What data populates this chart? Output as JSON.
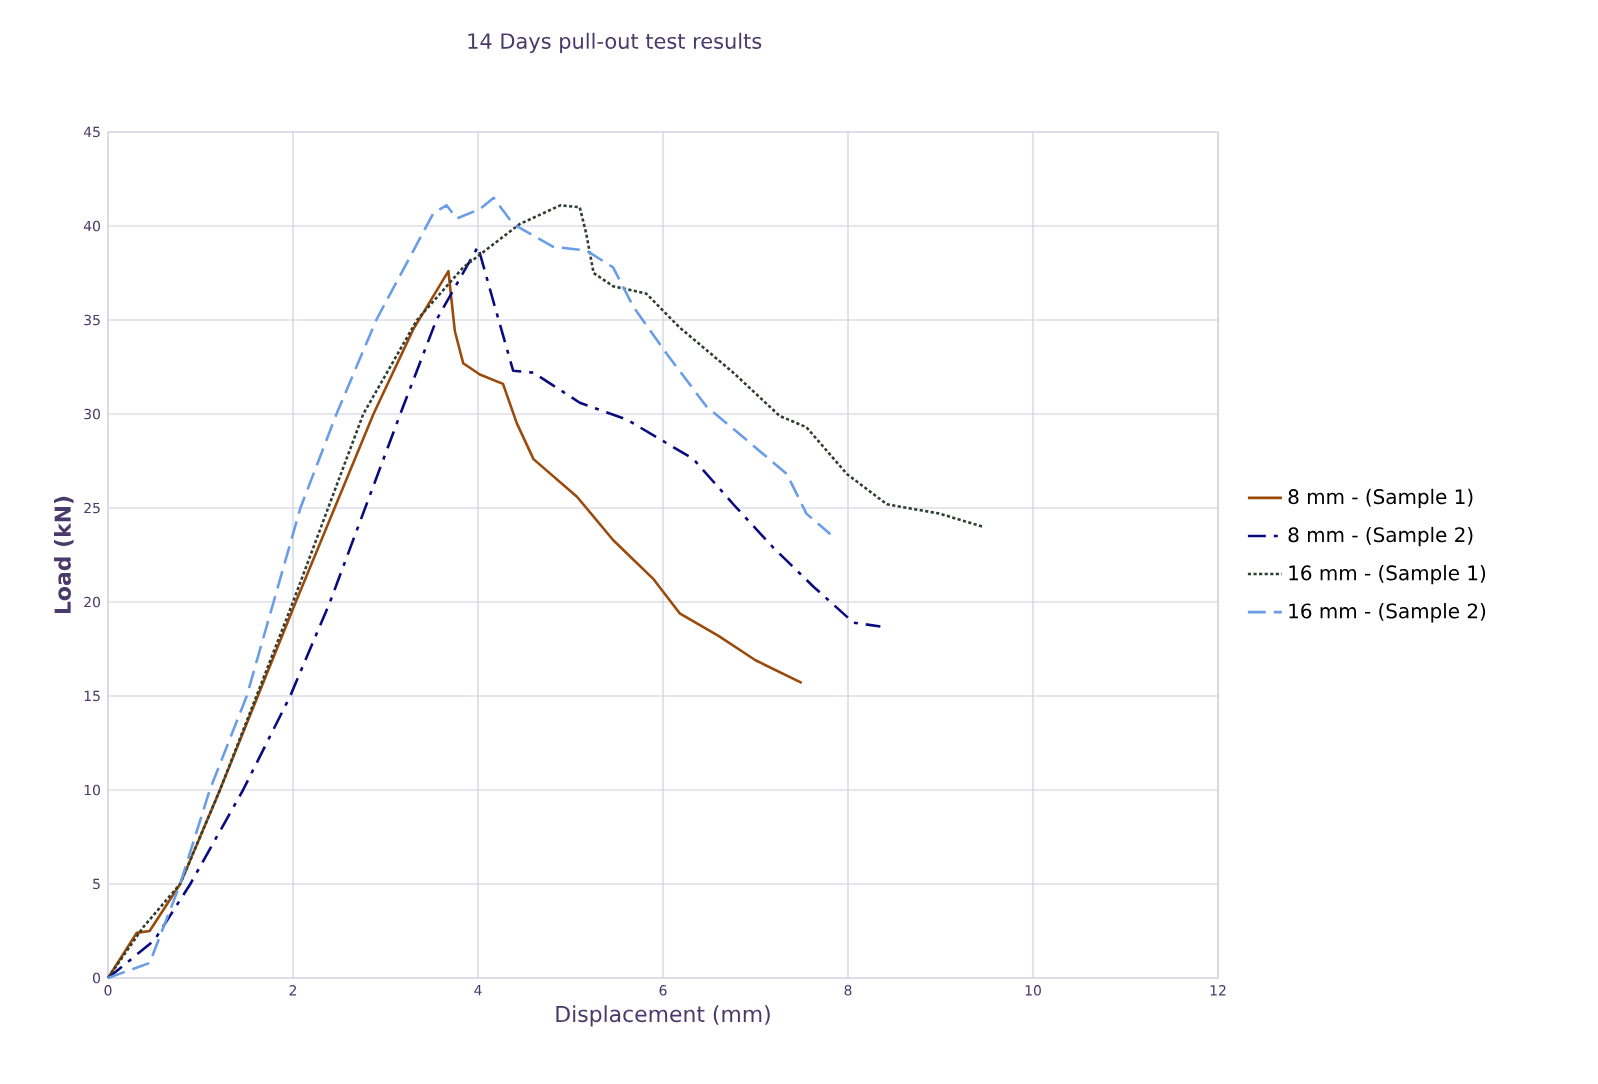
{
  "chart_data": {
    "type": "line",
    "title": "14 Days pull-out test results",
    "xlabel": "Displacement (mm)",
    "ylabel": "Load (kN)",
    "xlim": [
      0,
      12
    ],
    "xticks": [
      0,
      2,
      4,
      6,
      8,
      10,
      12
    ],
    "ylim": [
      0,
      45
    ],
    "yticks": [
      0,
      5,
      10,
      15,
      20,
      25,
      30,
      35,
      40,
      45
    ],
    "grid": true,
    "legend": "right",
    "marker": "none",
    "series": [
      {
        "name": "8 mm - (Sample 1)",
        "color": "#9c4a0a",
        "line_style": "solid",
        "x": [
          0,
          0.31,
          0.45,
          0.78,
          1.21,
          2.03,
          2.87,
          3.3,
          3.68,
          3.75,
          3.84,
          4.02,
          4.27,
          4.42,
          4.6,
          5.07,
          5.46,
          5.9,
          6.18,
          6.6,
          7.0,
          7.5
        ],
        "values": [
          0,
          2.4,
          2.5,
          5,
          10,
          20,
          30,
          34.5,
          37.6,
          34.4,
          32.7,
          32.1,
          31.6,
          29.5,
          27.6,
          25.6,
          23.3,
          21.2,
          19.4,
          18.2,
          16.9,
          15.7
        ]
      },
      {
        "name": "8 mm - (Sample 2)",
        "color": "#0a0a80",
        "line_style": "dashdot",
        "x": [
          0,
          0.5,
          0.89,
          1.46,
          1.97,
          2.4,
          3.16,
          3.55,
          4.0,
          4.2,
          4.38,
          4.6,
          5.1,
          5.61,
          6.33,
          6.76,
          7.19,
          7.63,
          8.06,
          8.35
        ],
        "values": [
          0,
          2,
          5,
          10,
          15,
          20,
          30,
          35,
          38.9,
          35.4,
          32.3,
          32.2,
          30.6,
          29.7,
          27.6,
          25.2,
          22.9,
          20.8,
          18.9,
          18.7
        ]
      },
      {
        "name": "16 mm - (Sample 1)",
        "color": "#2f3f33",
        "line_style": "dotted",
        "x": [
          0,
          0.38,
          0.78,
          1.21,
          2.0,
          2.76,
          3.34,
          3.84,
          4.0,
          4.45,
          4.89,
          5.1,
          5.17,
          5.25,
          5.46,
          5.82,
          6.18,
          6.76,
          7.26,
          7.55,
          7.99,
          8.42,
          8.99,
          9.46
        ],
        "values": [
          0,
          2.7,
          5,
          10,
          20,
          30,
          35,
          37.8,
          38.4,
          40.1,
          41.1,
          41.0,
          39.6,
          37.5,
          36.8,
          36.4,
          34.6,
          32.2,
          29.9,
          29.3,
          26.8,
          25.2,
          24.7,
          24.0
        ]
      },
      {
        "name": "16 mm - (Sample 2)",
        "color": "#6a9de8",
        "line_style": "dashed",
        "x": [
          0,
          0.45,
          0.78,
          1.1,
          1.5,
          1.79,
          2.08,
          2.47,
          2.9,
          3.52,
          3.66,
          3.77,
          4.02,
          4.17,
          4.38,
          4.81,
          5.17,
          5.46,
          5.68,
          6.04,
          6.47,
          6.98,
          7.34,
          7.55,
          7.81
        ],
        "values": [
          0,
          0.8,
          5,
          10,
          15,
          20,
          25,
          30,
          35,
          40.7,
          41.1,
          40.4,
          40.9,
          41.5,
          40.1,
          38.9,
          38.7,
          37.8,
          35.7,
          33.2,
          30.4,
          28.3,
          26.8,
          24.7,
          23.6
        ]
      }
    ]
  }
}
